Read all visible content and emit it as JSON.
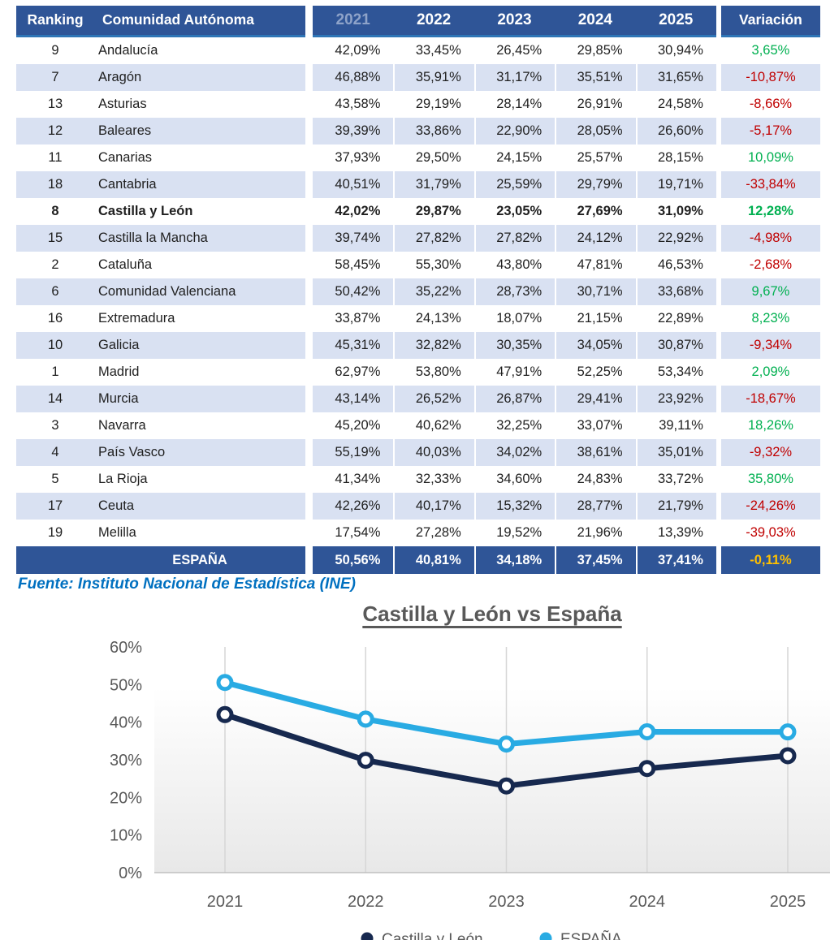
{
  "table": {
    "headers": {
      "ranking": "Ranking",
      "comunidad": "Comunidad Autónoma",
      "years": [
        "2021",
        "2022",
        "2023",
        "2024",
        "2025"
      ],
      "variacion": "Variación"
    },
    "rows": [
      {
        "ranking": "9",
        "name": "Andalucía",
        "values": [
          "42,09%",
          "33,45%",
          "26,45%",
          "29,85%",
          "30,94%"
        ],
        "variacion": "3,65%",
        "trend": "up",
        "highlight": false
      },
      {
        "ranking": "7",
        "name": "Aragón",
        "values": [
          "46,88%",
          "35,91%",
          "31,17%",
          "35,51%",
          "31,65%"
        ],
        "variacion": "-10,87%",
        "trend": "down",
        "highlight": false
      },
      {
        "ranking": "13",
        "name": "Asturias",
        "values": [
          "43,58%",
          "29,19%",
          "28,14%",
          "26,91%",
          "24,58%"
        ],
        "variacion": "-8,66%",
        "trend": "down",
        "highlight": false
      },
      {
        "ranking": "12",
        "name": "Baleares",
        "values": [
          "39,39%",
          "33,86%",
          "22,90%",
          "28,05%",
          "26,60%"
        ],
        "variacion": "-5,17%",
        "trend": "down",
        "highlight": false
      },
      {
        "ranking": "11",
        "name": "Canarias",
        "values": [
          "37,93%",
          "29,50%",
          "24,15%",
          "25,57%",
          "28,15%"
        ],
        "variacion": "10,09%",
        "trend": "up",
        "highlight": false
      },
      {
        "ranking": "18",
        "name": "Cantabria",
        "values": [
          "40,51%",
          "31,79%",
          "25,59%",
          "29,79%",
          "19,71%"
        ],
        "variacion": "-33,84%",
        "trend": "down",
        "highlight": false
      },
      {
        "ranking": "8",
        "name": "Castilla y León",
        "values": [
          "42,02%",
          "29,87%",
          "23,05%",
          "27,69%",
          "31,09%"
        ],
        "variacion": "12,28%",
        "trend": "up",
        "highlight": true
      },
      {
        "ranking": "15",
        "name": "Castilla la Mancha",
        "values": [
          "39,74%",
          "27,82%",
          "27,82%",
          "24,12%",
          "22,92%"
        ],
        "variacion": "-4,98%",
        "trend": "down",
        "highlight": false
      },
      {
        "ranking": "2",
        "name": "Cataluña",
        "values": [
          "58,45%",
          "55,30%",
          "43,80%",
          "47,81%",
          "46,53%"
        ],
        "variacion": "-2,68%",
        "trend": "down",
        "highlight": false
      },
      {
        "ranking": "6",
        "name": "Comunidad Valenciana",
        "values": [
          "50,42%",
          "35,22%",
          "28,73%",
          "30,71%",
          "33,68%"
        ],
        "variacion": "9,67%",
        "trend": "up",
        "highlight": false
      },
      {
        "ranking": "16",
        "name": "Extremadura",
        "values": [
          "33,87%",
          "24,13%",
          "18,07%",
          "21,15%",
          "22,89%"
        ],
        "variacion": "8,23%",
        "trend": "up",
        "highlight": false
      },
      {
        "ranking": "10",
        "name": "Galicia",
        "values": [
          "45,31%",
          "32,82%",
          "30,35%",
          "34,05%",
          "30,87%"
        ],
        "variacion": "-9,34%",
        "trend": "down",
        "highlight": false
      },
      {
        "ranking": "1",
        "name": "Madrid",
        "values": [
          "62,97%",
          "53,80%",
          "47,91%",
          "52,25%",
          "53,34%"
        ],
        "variacion": "2,09%",
        "trend": "up",
        "highlight": false
      },
      {
        "ranking": "14",
        "name": "Murcia",
        "values": [
          "43,14%",
          "26,52%",
          "26,87%",
          "29,41%",
          "23,92%"
        ],
        "variacion": "-18,67%",
        "trend": "down",
        "highlight": false
      },
      {
        "ranking": "3",
        "name": "Navarra",
        "values": [
          "45,20%",
          "40,62%",
          "32,25%",
          "33,07%",
          "39,11%"
        ],
        "variacion": "18,26%",
        "trend": "up",
        "highlight": false
      },
      {
        "ranking": "4",
        "name": "País Vasco",
        "values": [
          "55,19%",
          "40,03%",
          "34,02%",
          "38,61%",
          "35,01%"
        ],
        "variacion": "-9,32%",
        "trend": "down",
        "highlight": false
      },
      {
        "ranking": "5",
        "name": "La Rioja",
        "values": [
          "41,34%",
          "32,33%",
          "34,60%",
          "24,83%",
          "33,72%"
        ],
        "variacion": "35,80%",
        "trend": "up",
        "highlight": false
      },
      {
        "ranking": "17",
        "name": "Ceuta",
        "values": [
          "42,26%",
          "40,17%",
          "15,32%",
          "28,77%",
          "21,79%"
        ],
        "variacion": "-24,26%",
        "trend": "down",
        "highlight": false
      },
      {
        "ranking": "19",
        "name": "Melilla",
        "values": [
          "17,54%",
          "27,28%",
          "19,52%",
          "21,96%",
          "13,39%"
        ],
        "variacion": "-39,03%",
        "trend": "down",
        "highlight": false
      }
    ],
    "total": {
      "label": "ESPAÑA",
      "values": [
        "50,56%",
        "40,81%",
        "34,18%",
        "37,45%",
        "37,41%"
      ],
      "variacion": "-0,11%"
    }
  },
  "source_note": "Fuente: Instituto Nacional de Estadística (INE)",
  "chart_data": {
    "type": "line",
    "title": "Castilla y León vs España",
    "categories": [
      "2021",
      "2022",
      "2023",
      "2024",
      "2025"
    ],
    "series": [
      {
        "name": "Castilla y León",
        "values": [
          42.02,
          29.87,
          23.05,
          27.69,
          31.09
        ],
        "color": "#17294F"
      },
      {
        "name": "ESPAÑA",
        "values": [
          50.56,
          40.81,
          34.18,
          37.45,
          37.41
        ],
        "color": "#29ABE3"
      }
    ],
    "xlabel": "",
    "ylabel": "",
    "ylim": [
      0,
      60
    ],
    "ytick_step": 10,
    "ytick_format": "percent",
    "grid": "vertical-only",
    "legend_position": "bottom"
  },
  "colors": {
    "header_bg": "#2F5597",
    "header_border": "#2E75B6",
    "header_past_year": "#8EA3C9",
    "stripe": "#D9E1F2",
    "total_bg": "#2F5597",
    "positive": "#00B050",
    "negative": "#C00000",
    "total_variation": "#FFC000",
    "source_text": "#0070C0",
    "axis_text": "#595959",
    "gridline": "#D6D6D6",
    "axis_line": "#BFBFBF",
    "plot_bg_bottom": "#E8E8E8"
  }
}
